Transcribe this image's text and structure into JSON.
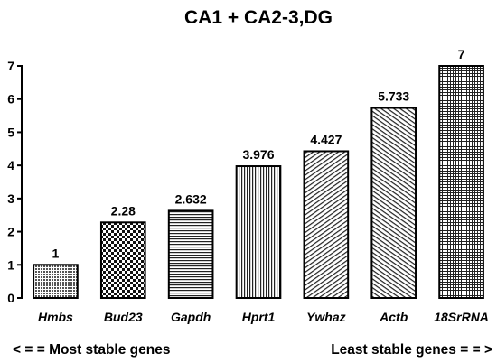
{
  "chart_data": {
    "type": "bar",
    "title": "CA1 + CA2-3,DG",
    "categories": [
      "Hmbs",
      "Bud23",
      "Gapdh",
      "Hprt1",
      "Ywhaz",
      "Actb",
      "18SrRNA"
    ],
    "values": [
      1,
      2.28,
      2.632,
      3.976,
      4.427,
      5.733,
      7
    ],
    "data_labels": [
      "1",
      "2.28",
      "2.632",
      "3.976",
      "4.427",
      "5.733",
      "7"
    ],
    "patterns": [
      "dots",
      "checker",
      "horizontal",
      "vertical",
      "diagonal-right",
      "diagonal-left",
      "grid"
    ],
    "ylim": [
      0,
      7
    ],
    "yticks": [
      0,
      1,
      2,
      3,
      4,
      5,
      6,
      7
    ],
    "xlabel": "",
    "ylabel": "",
    "grid": false,
    "legend": "none",
    "footer_left": "< = =  Most stable genes",
    "footer_right": "Least stable genes  = = >"
  }
}
